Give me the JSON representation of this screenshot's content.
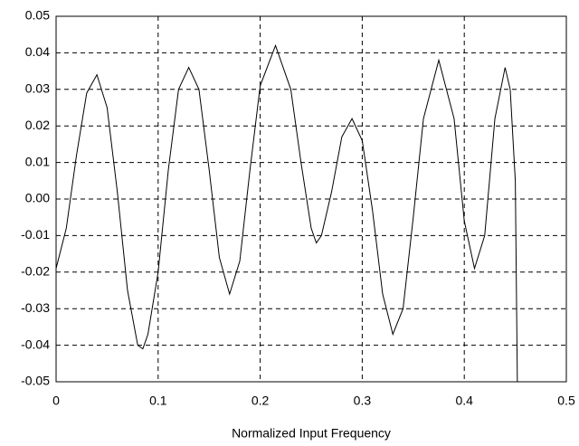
{
  "chart_data": {
    "type": "line",
    "xlabel": "Normalized Input Frequency",
    "x": [
      0,
      0.01,
      0.02,
      0.03,
      0.04,
      0.05,
      0.06,
      0.07,
      0.08,
      0.085,
      0.09,
      0.1,
      0.11,
      0.12,
      0.13,
      0.14,
      0.15,
      0.16,
      0.17,
      0.18,
      0.19,
      0.2,
      0.215,
      0.23,
      0.24,
      0.25,
      0.255,
      0.26,
      0.27,
      0.28,
      0.29,
      0.3,
      0.31,
      0.32,
      0.33,
      0.34,
      0.35,
      0.36,
      0.375,
      0.39,
      0.4,
      0.41,
      0.42,
      0.43,
      0.44,
      0.445,
      0.45,
      0.452
    ],
    "values": [
      -0.019,
      -0.008,
      0.012,
      0.029,
      0.034,
      0.025,
      0.002,
      -0.025,
      -0.04,
      -0.041,
      -0.037,
      -0.02,
      0.008,
      0.03,
      0.036,
      0.03,
      0.008,
      -0.016,
      -0.026,
      -0.017,
      0.008,
      0.031,
      0.042,
      0.03,
      0.01,
      -0.008,
      -0.012,
      -0.01,
      0.002,
      0.017,
      0.022,
      0.016,
      -0.003,
      -0.026,
      -0.037,
      -0.03,
      -0.005,
      0.022,
      0.038,
      0.022,
      -0.006,
      -0.019,
      -0.01,
      0.022,
      0.036,
      0.03,
      0.005,
      -0.05
    ],
    "color": "#000000",
    "xlim": [
      0,
      0.5
    ],
    "xticks": [
      0,
      0.1,
      0.2,
      0.3,
      0.4,
      0.5
    ],
    "ylim": [
      -0.05,
      0.05
    ],
    "yticks": [
      -0.05,
      -0.04,
      -0.03,
      -0.02,
      -0.01,
      {
        "value": 0,
        "label": "0.00"
      },
      0.01,
      0.02,
      0.03,
      0.04,
      0.05
    ],
    "grid": true
  }
}
